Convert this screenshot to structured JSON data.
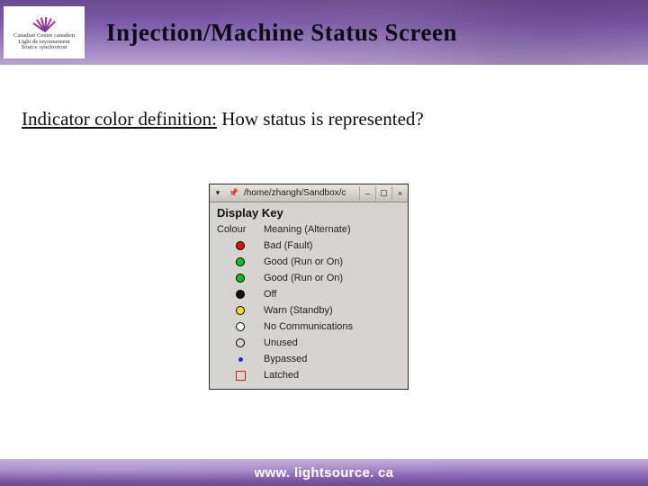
{
  "header": {
    "title": "Injection/Machine Status Screen",
    "logo_lines": [
      "Canadian",
      "Light",
      "Source"
    ],
    "logo_lines2": [
      "Centre canadien",
      "de rayonnement",
      "synchrotron"
    ]
  },
  "subtitle": {
    "underlined": "Indicator color definition:",
    "rest": " How status is represented?"
  },
  "dialog": {
    "titlebar": {
      "dropdown_glyph": "▾",
      "pin_glyph": "📌",
      "path": "/home/zhangh/Sandbox/c",
      "min_glyph": "–",
      "max_glyph": "▢",
      "close_glyph": "×"
    },
    "display_key_title": "Display Key",
    "header_row": {
      "left": "Colour",
      "right": "Meaning (Alternate)"
    },
    "rows": [
      {
        "kind": "dot",
        "fill": "#e01010",
        "border": "#000000",
        "label": "Bad (Fault)"
      },
      {
        "kind": "dot",
        "fill": "#10c020",
        "border": "#000000",
        "label": "Good (Run or On)"
      },
      {
        "kind": "dot",
        "fill": "#10c020",
        "border": "#000000",
        "label": "Good (Run or On)"
      },
      {
        "kind": "dot",
        "fill": "#101010",
        "border": "#000000",
        "label": "Off"
      },
      {
        "kind": "dot",
        "fill": "#f0e010",
        "border": "#000000",
        "label": "Warn (Standby)"
      },
      {
        "kind": "dot",
        "fill": "#ffffff",
        "border": "#000000",
        "label": "No Communications"
      },
      {
        "kind": "dot-open",
        "fill": "transparent",
        "border": "#000000",
        "label": "Unused"
      },
      {
        "kind": "dot-small",
        "fill": "#2030d0",
        "border": "transparent",
        "label": "Bypassed"
      },
      {
        "kind": "square-open",
        "fill": "transparent",
        "border": "#e02010",
        "label": "Latched"
      }
    ]
  },
  "footer": {
    "url": "www. lightsource. ca"
  },
  "colors": {
    "header_grad_top": "#6a4b8f",
    "header_grad_bottom": "#b8a3d0",
    "dialog_bg": "#d7d3ce",
    "footer_text": "#ffffff"
  }
}
